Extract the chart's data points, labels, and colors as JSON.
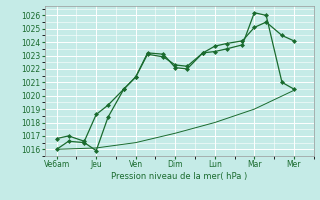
{
  "xlabel": "Pression niveau de la mer( hPa )",
  "bg_color": "#c5ebe7",
  "grid_color": "#ffffff",
  "line_color": "#1a6b2e",
  "ylim": [
    1015.5,
    1026.7
  ],
  "yticks": [
    1016,
    1017,
    1018,
    1019,
    1020,
    1021,
    1022,
    1023,
    1024,
    1025,
    1026
  ],
  "xtick_labels": [
    "Ve6am",
    "Jeu",
    "Ven",
    "Dim",
    "Lun",
    "Mar",
    "Mer"
  ],
  "xtick_positions": [
    0,
    1,
    2,
    3,
    4,
    5,
    6
  ],
  "xlim": [
    -0.3,
    6.5
  ],
  "series1_x": [
    0.0,
    0.3,
    0.7,
    1.0,
    1.3,
    1.7,
    2.0,
    2.3,
    2.7,
    3.0,
    3.3,
    3.7,
    4.0,
    4.3,
    4.7,
    5.0,
    5.3,
    5.7,
    6.0
  ],
  "series1_y": [
    1016.0,
    1016.6,
    1016.5,
    1015.9,
    1018.4,
    1020.5,
    1021.4,
    1023.2,
    1023.1,
    1022.1,
    1022.0,
    1023.2,
    1023.3,
    1023.5,
    1023.8,
    1026.2,
    1026.0,
    1021.0,
    1020.5
  ],
  "series2_x": [
    0.0,
    0.3,
    0.7,
    1.0,
    1.3,
    1.7,
    2.0,
    2.3,
    2.7,
    3.0,
    3.3,
    3.7,
    4.0,
    4.3,
    4.7,
    5.0,
    5.3,
    5.7,
    6.0
  ],
  "series2_y": [
    1016.8,
    1017.0,
    1016.6,
    1018.6,
    1019.3,
    1020.5,
    1021.4,
    1023.1,
    1022.9,
    1022.3,
    1022.2,
    1023.2,
    1023.7,
    1023.9,
    1024.1,
    1025.1,
    1025.5,
    1024.5,
    1024.1
  ],
  "series3_x": [
    0.0,
    1.0,
    2.0,
    3.0,
    4.0,
    5.0,
    6.0
  ],
  "series3_y": [
    1016.0,
    1016.1,
    1016.5,
    1017.2,
    1018.0,
    1019.0,
    1020.4
  ]
}
